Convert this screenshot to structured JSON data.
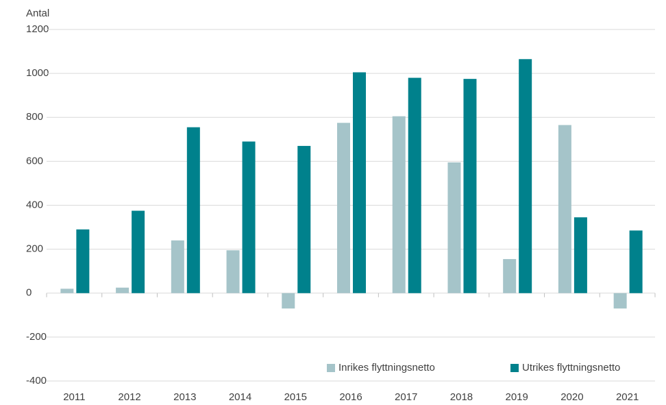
{
  "chart_data": {
    "type": "bar",
    "ylabel": "Antal",
    "categories": [
      "2011",
      "2012",
      "2013",
      "2014",
      "2015",
      "2016",
      "2017",
      "2018",
      "2019",
      "2020",
      "2021"
    ],
    "series": [
      {
        "name": "Inrikes flyttningsnetto",
        "color": "#a5c4c9",
        "values": [
          20,
          25,
          240,
          195,
          -70,
          775,
          805,
          595,
          155,
          765,
          -70
        ]
      },
      {
        "name": "Utrikes flyttningsnetto",
        "color": "#00818c",
        "values": [
          290,
          375,
          755,
          690,
          670,
          1005,
          980,
          975,
          1065,
          345,
          285
        ]
      }
    ],
    "ylim": [
      -400,
      1200
    ],
    "yticks": [
      -400,
      -200,
      0,
      200,
      400,
      600,
      800,
      1000,
      1200
    ],
    "grid": true,
    "legend": "lower right"
  }
}
